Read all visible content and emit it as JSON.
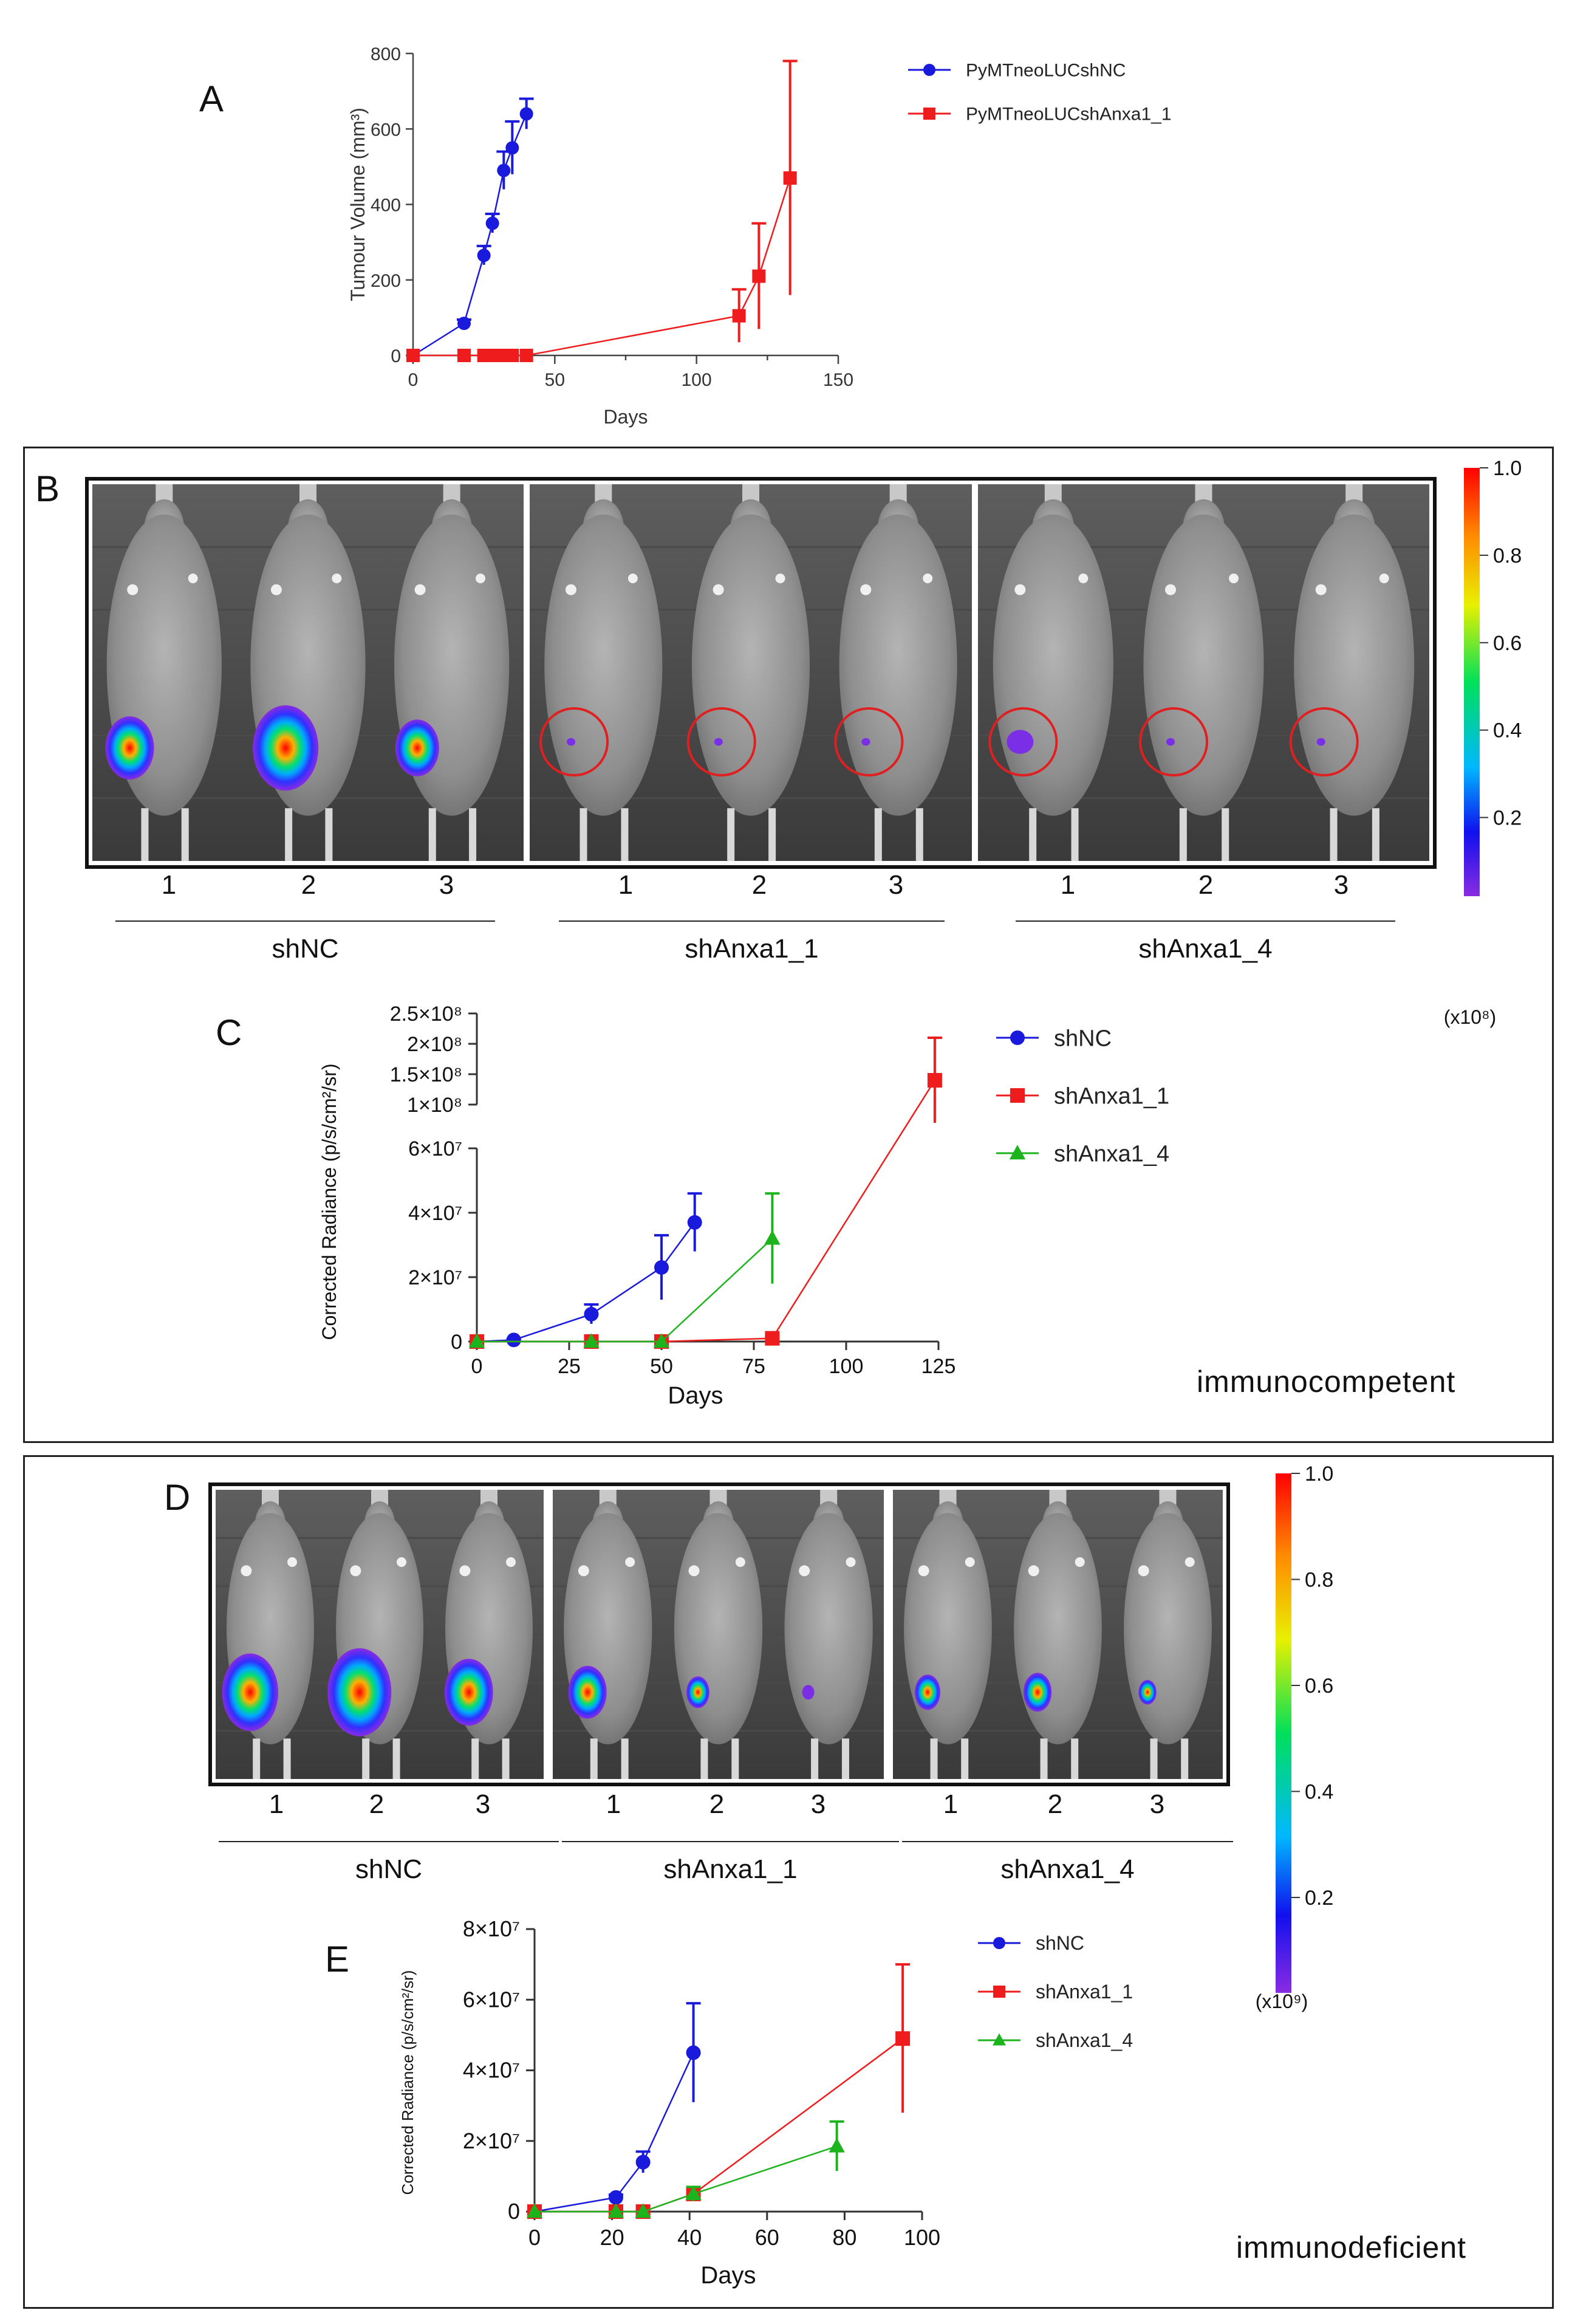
{
  "panel_labels": {
    "A": "A",
    "B": "B",
    "C": "C",
    "D": "D",
    "E": "E"
  },
  "colors": {
    "shNC": "#1a1adc",
    "shAnxa1_1": "#ee1c1c",
    "shAnxa1_4": "#1db31d"
  },
  "chart_a": {
    "ylabel": "Tumour Volume (mm³)",
    "xlabel": "Days",
    "xticks": [
      "0",
      "50",
      "100",
      "150"
    ],
    "yticks": [
      "0",
      "200",
      "400",
      "600",
      "800"
    ],
    "legend": [
      "PyMTneoLUCshNC",
      "PyMTneoLUCshAnxa1_1"
    ]
  },
  "chart_c": {
    "ylabel": "Corrected Radiance (p/s/cm²/sr)",
    "xlabel": "Days",
    "xticks": [
      "0",
      "25",
      "50",
      "75",
      "100",
      "125"
    ],
    "yticks_low": [
      "0",
      "2×10⁷",
      "4×10⁷",
      "6×10⁷"
    ],
    "yticks_high": [
      "1×10⁸",
      "1.5×10⁸",
      "2×10⁸",
      "2.5×10⁸"
    ],
    "legend": [
      "shNC",
      "shAnxa1_1",
      "shAnxa1_4"
    ]
  },
  "chart_e": {
    "ylabel": "Corrected Radiance (p/s/cm²/sr)",
    "xlabel": "Days",
    "xticks": [
      "0",
      "20",
      "40",
      "60",
      "80",
      "100"
    ],
    "yticks": [
      "0",
      "2×10⁷",
      "4×10⁷",
      "6×10⁷",
      "8×10⁷"
    ],
    "legend": [
      "shNC",
      "shAnxa1_1",
      "shAnxa1_4"
    ]
  },
  "colorbar_b": {
    "ticks": [
      "1.0",
      "0.8",
      "0.6",
      "0.4",
      "0.2"
    ],
    "unit": "(x10⁸)"
  },
  "colorbar_d": {
    "ticks": [
      "1.0",
      "0.8",
      "0.6",
      "0.4",
      "0.2"
    ],
    "unit": "(x10⁹)"
  },
  "groups": [
    "shNC",
    "shAnxa1_1",
    "shAnxa1_4"
  ],
  "mouse_numbers": [
    "1",
    "2",
    "3"
  ],
  "condition_b": "immunocompetent",
  "condition_d": "immunodeficient",
  "chart_data": [
    {
      "type": "line",
      "xlabel": "Days",
      "ylabel": "Tumour Volume (mm³)",
      "xlim": [
        0,
        150
      ],
      "ylim": [
        0,
        800
      ],
      "series": [
        {
          "name": "PyMTneoLUCshNC",
          "x": [
            0,
            18,
            25,
            28,
            32,
            35,
            40
          ],
          "y": [
            0,
            85,
            265,
            350,
            490,
            550,
            640
          ],
          "err": [
            0,
            10,
            25,
            25,
            50,
            70,
            40
          ]
        },
        {
          "name": "PyMTneoLUCshAnxa1_1",
          "x": [
            0,
            18,
            25,
            28,
            32,
            35,
            40,
            115,
            122,
            133
          ],
          "y": [
            0,
            0,
            0,
            0,
            0,
            0,
            0,
            105,
            210,
            470
          ],
          "err": [
            0,
            0,
            0,
            0,
            0,
            0,
            0,
            70,
            140,
            310
          ]
        }
      ]
    },
    {
      "type": "line",
      "xlabel": "Days",
      "ylabel": "Corrected Radiance (p/s/cm²/sr)",
      "xlim": [
        0,
        125
      ],
      "ylim": [
        0,
        250000000
      ],
      "axis_break": [
        60000000,
        100000000
      ],
      "series": [
        {
          "name": "shNC",
          "x": [
            0,
            10,
            31,
            50,
            59
          ],
          "y": [
            0,
            500000,
            8500000,
            23000000,
            37000000
          ],
          "err": [
            0,
            300000,
            3000000,
            10000000,
            9000000
          ]
        },
        {
          "name": "shAnxa1_1",
          "x": [
            0,
            31,
            50,
            80,
            124
          ],
          "y": [
            0,
            0,
            0,
            1000000,
            140000000
          ],
          "err": [
            0,
            0,
            0,
            500000,
            70000000
          ]
        },
        {
          "name": "shAnxa1_4",
          "x": [
            0,
            31,
            50,
            80
          ],
          "y": [
            0,
            0,
            0,
            32000000
          ],
          "err": [
            0,
            0,
            0,
            14000000
          ]
        }
      ]
    },
    {
      "type": "line",
      "xlabel": "Days",
      "ylabel": "Corrected Radiance (p/s/cm²/sr)",
      "xlim": [
        0,
        100
      ],
      "ylim": [
        0,
        80000000
      ],
      "series": [
        {
          "name": "shNC",
          "x": [
            0,
            21,
            28,
            41
          ],
          "y": [
            0,
            4000000,
            14000000,
            45000000
          ],
          "err": [
            0,
            800000,
            3000000,
            14000000
          ]
        },
        {
          "name": "shAnxa1_1",
          "x": [
            0,
            21,
            28,
            41,
            95
          ],
          "y": [
            0,
            0,
            0,
            5000000,
            49000000
          ],
          "err": [
            0,
            0,
            0,
            1500000,
            21000000
          ]
        },
        {
          "name": "shAnxa1_4",
          "x": [
            0,
            21,
            28,
            41,
            78
          ],
          "y": [
            0,
            0,
            0,
            5000000,
            18500000
          ],
          "err": [
            0,
            0,
            0,
            2000000,
            7000000
          ]
        }
      ]
    }
  ]
}
